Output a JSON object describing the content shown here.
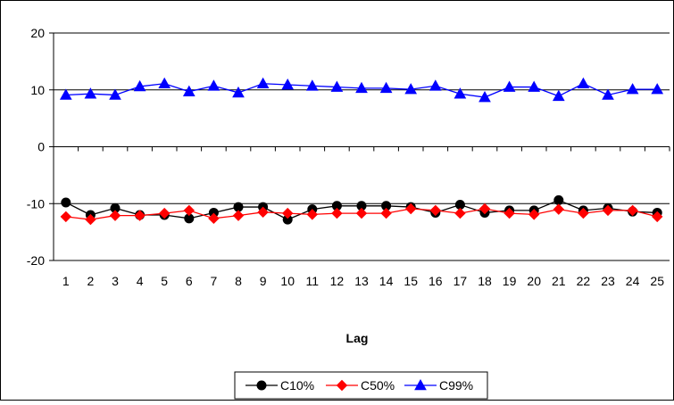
{
  "chart_data": {
    "type": "line",
    "title": "",
    "xlabel": "Lag",
    "ylabel": "",
    "ylim": [
      -20,
      20
    ],
    "yticks": [
      -20,
      -10,
      0,
      10,
      20
    ],
    "grid": "horizontal major gridlines",
    "legend_position": "bottom",
    "categories": [
      "1",
      "2",
      "3",
      "4",
      "5",
      "6",
      "7",
      "8",
      "9",
      "10",
      "11",
      "12",
      "13",
      "14",
      "15",
      "16",
      "17",
      "18",
      "19",
      "20",
      "21",
      "22",
      "23",
      "24",
      "25"
    ],
    "series": [
      {
        "name": "C10%",
        "color": "#000000",
        "marker": "circle",
        "values": [
          -9.8,
          -12.0,
          -10.8,
          -12.0,
          -12.0,
          -12.6,
          -11.6,
          -10.6,
          -10.6,
          -12.8,
          -11.0,
          -10.4,
          -10.4,
          -10.4,
          -10.6,
          -11.6,
          -10.2,
          -11.6,
          -11.2,
          -11.2,
          -9.4,
          -11.2,
          -10.8,
          -11.4,
          -11.6
        ]
      },
      {
        "name": "C50%",
        "color": "#ff0000",
        "marker": "diamond",
        "values": [
          -12.3,
          -12.8,
          -12.1,
          -12.1,
          -11.7,
          -11.2,
          -12.6,
          -12.1,
          -11.5,
          -11.7,
          -11.9,
          -11.7,
          -11.7,
          -11.7,
          -10.9,
          -11.2,
          -11.7,
          -10.9,
          -11.7,
          -11.9,
          -11.0,
          -11.7,
          -11.2,
          -11.2,
          -12.3
        ]
      },
      {
        "name": "C99%",
        "color": "#0000ff",
        "marker": "triangle",
        "values": [
          9.1,
          9.3,
          9.1,
          10.6,
          11.1,
          9.7,
          10.7,
          9.5,
          11.1,
          10.9,
          10.7,
          10.5,
          10.3,
          10.3,
          10.1,
          10.7,
          9.3,
          8.7,
          10.5,
          10.5,
          8.9,
          11.1,
          9.1,
          10.1,
          10.1
        ]
      }
    ]
  }
}
